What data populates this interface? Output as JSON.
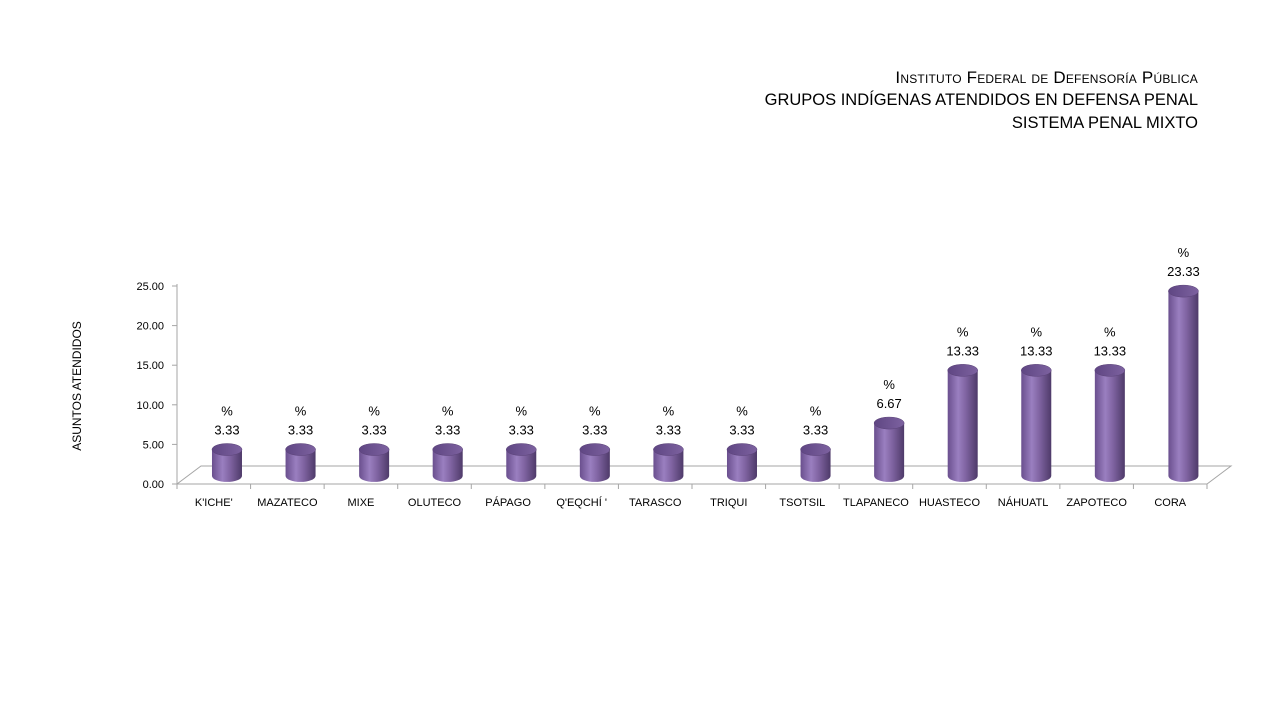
{
  "header": {
    "title": "Instituto Federal de Defensoría Pública",
    "subtitle": "GRUPOS  INDÍGENAS  ATENDIDOS EN  DEFENSA PENAL",
    "subtitle2": "SISTEMA PENAL MIXTO"
  },
  "colors": {
    "bar": "#8064a2",
    "bar_dark": "#5c4478",
    "bar_top": "#6f5491"
  },
  "chart_data": {
    "type": "bar",
    "title": "Instituto Federal de Defensoría Pública",
    "subtitle": "GRUPOS  INDÍGENAS  ATENDIDOS EN  DEFENSA PENAL / SISTEMA PENAL MIXTO",
    "xlabel": "",
    "ylabel": "ASUNTOS ATENDIDOS",
    "ylim": [
      0,
      25
    ],
    "yticks": [
      "0.00",
      "5.00",
      "10.00",
      "15.00",
      "20.00",
      "25.00"
    ],
    "grid": false,
    "categories": [
      "K'ICHE'",
      "MAZATECO",
      "MIXE",
      "OLUTECO",
      "PÁPAGO",
      "Q'EQCHÍ '",
      "TARASCO",
      "TRIQUI",
      "TSOTSIL",
      "TLAPANECO",
      "HUASTECO",
      "NÁHUATL",
      "ZAPOTECO",
      "CORA"
    ],
    "values": [
      3.33,
      3.33,
      3.33,
      3.33,
      3.33,
      3.33,
      3.33,
      3.33,
      3.33,
      6.67,
      13.33,
      13.33,
      13.33,
      23.33
    ],
    "value_labels": [
      "3.33",
      "3.33",
      "3.33",
      "3.33",
      "3.33",
      "3.33",
      "3.33",
      "3.33",
      "3.33",
      "6.67",
      "13.33",
      "13.33",
      "13.33",
      "23.33"
    ],
    "label_prefix": "%"
  }
}
